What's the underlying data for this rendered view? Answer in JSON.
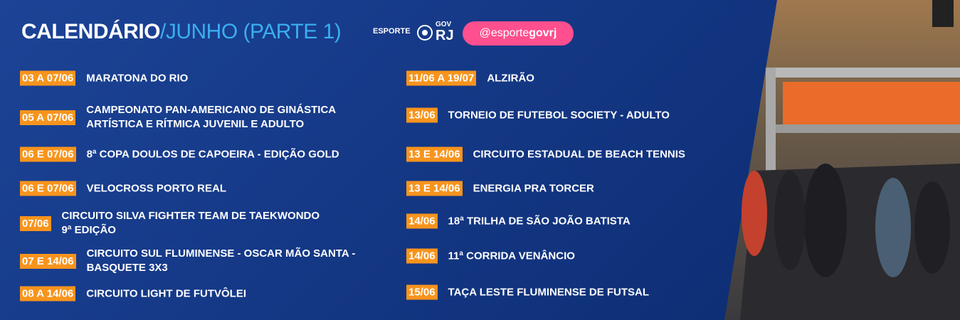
{
  "header": {
    "title": "CALENDÁRIO",
    "subtitle": "/JUNHO (PARTE 1)",
    "logo_esporte": "ESPORTE",
    "logo_gov": "GOV",
    "logo_rj": "RJ",
    "handle": {
      "prefix": "@esporte",
      "suffix": "govrj"
    }
  },
  "events": {
    "left": [
      {
        "date": "03 A 07/06",
        "name": "MARATONA DO RIO"
      },
      {
        "date": "05 A 07/06",
        "name": "CAMPEONATO PAN-AMERICANO DE GINÁSTICA\nARTÍSTICA E RÍTMICA JUVENIL E ADULTO"
      },
      {
        "date": "06 E 07/06",
        "name": "8ª COPA DOULOS DE CAPOEIRA - EDIÇÃO GOLD"
      },
      {
        "date": "06 E 07/06",
        "name": "VELOCROSS PORTO REAL"
      },
      {
        "date": "07/06",
        "name": "CIRCUITO SILVA FIGHTER TEAM DE TAEKWONDO\n9ª EDIÇÃO"
      },
      {
        "date": "07 E 14/06",
        "name": "CIRCUITO SUL FLUMINENSE - OSCAR MÃO SANTA -\nBASQUETE 3X3"
      },
      {
        "date": "08 A 14/06",
        "name": "CIRCUITO LIGHT DE FUTVÔLEI"
      }
    ],
    "right": [
      {
        "date": "11/06 A 19/07",
        "name": "ALZIRÃO"
      },
      {
        "date": "13/06",
        "name": "TORNEIO DE FUTEBOL SOCIETY - ADULTO"
      },
      {
        "date": "13 E 14/06",
        "name": "CIRCUITO ESTADUAL DE BEACH TENNIS"
      },
      {
        "date": "13 E 14/06",
        "name": "ENERGIA PRA TORCER"
      },
      {
        "date": "14/06",
        "name": "18ª TRILHA DE SÃO JOÃO BATISTA"
      },
      {
        "date": "14/06",
        "name": "11ª CORRIDA VENÂNCIO"
      },
      {
        "date": "15/06",
        "name": "TAÇA LESTE FLUMINENSE DE FUTSAL"
      }
    ]
  }
}
